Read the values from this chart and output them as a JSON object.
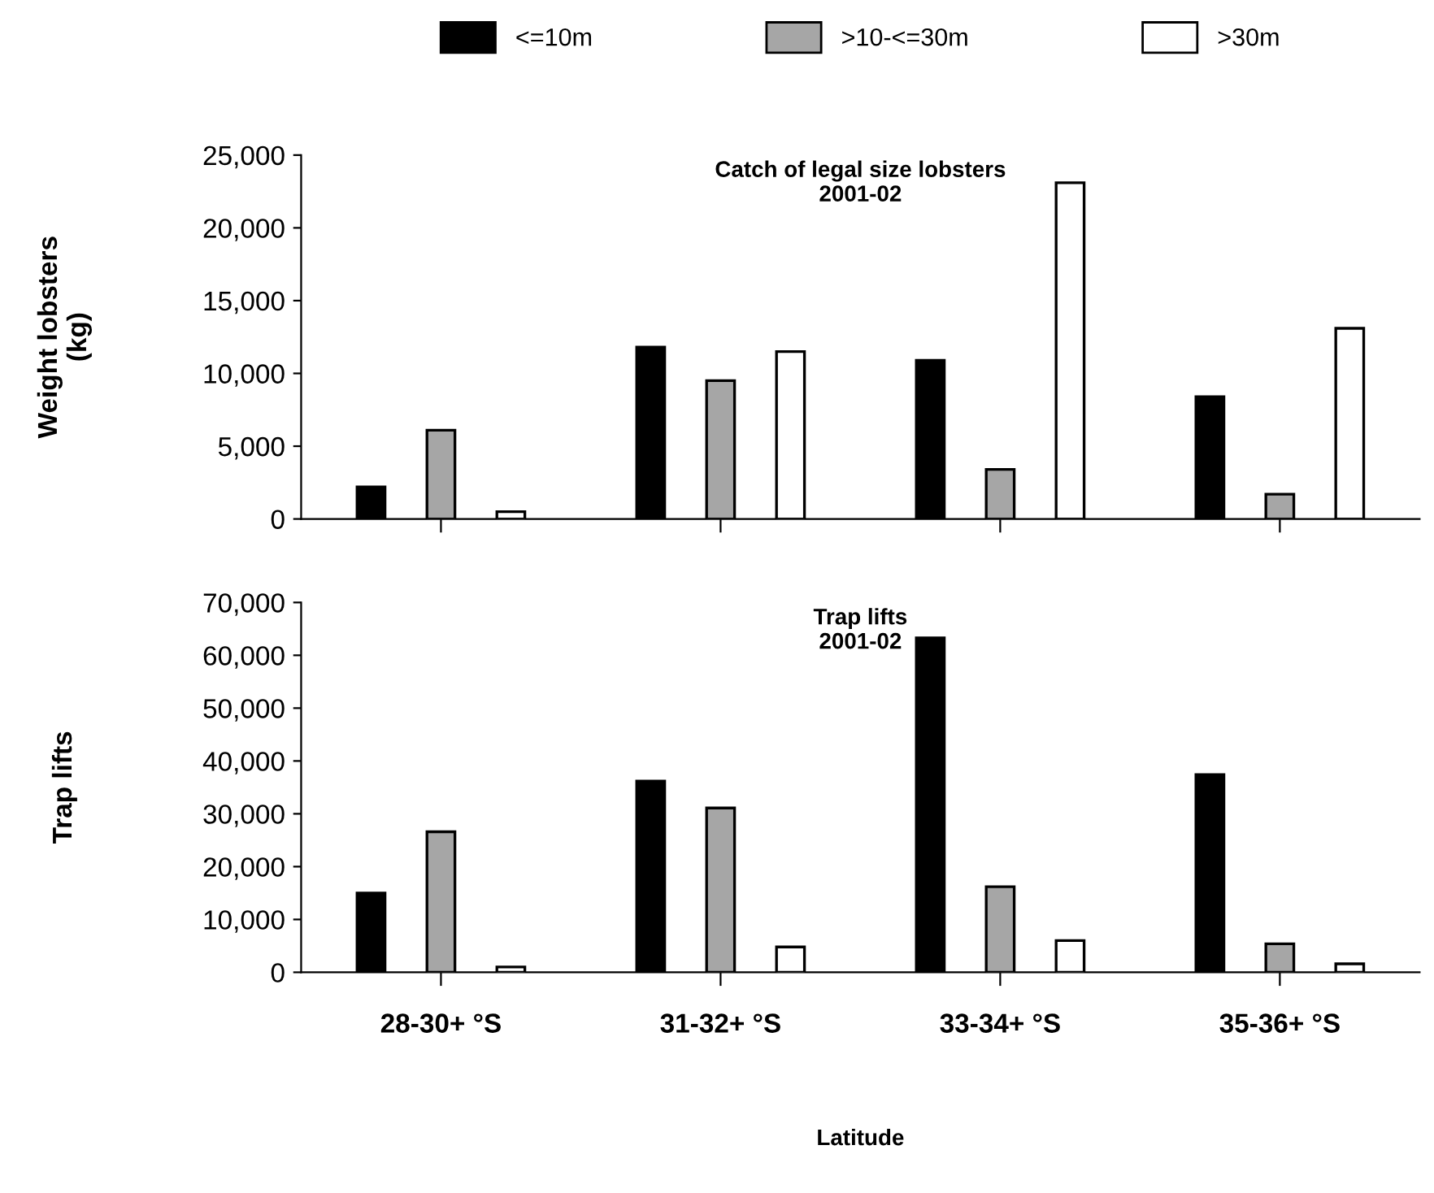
{
  "chart_data": [
    {
      "type": "bar",
      "title": "Catch of legal size lobsters\n2001-02",
      "ylabel": "Weight lobsters\n(kg)",
      "categories": [
        null,
        null,
        null,
        null
      ],
      "series": [
        {
          "name": "<=10m",
          "color": "#000000",
          "values": [
            2200,
            11800,
            10900,
            8400
          ]
        },
        {
          "name": ">10-<=30m",
          "color": "#a6a6a6",
          "values": [
            6100,
            9500,
            3400,
            1700
          ]
        },
        {
          "name": ">30m",
          "color": "#ffffff",
          "values": [
            500,
            11500,
            23100,
            13100
          ]
        }
      ],
      "ylim": [
        0,
        25000
      ],
      "yticks": [
        {
          "value": 0,
          "label": "0"
        },
        {
          "value": 5000,
          "label": "5,000"
        },
        {
          "value": 10000,
          "label": "10,000"
        },
        {
          "value": 15000,
          "label": "15,000"
        },
        {
          "value": 20000,
          "label": "20,000"
        },
        {
          "value": 25000,
          "label": "25,000"
        }
      ],
      "legend": "top"
    },
    {
      "type": "bar",
      "title": "Trap lifts\n2001-02",
      "ylabel": "Trap lifts",
      "xlabel": "Latitude",
      "categories": [
        "28-30+ °S",
        "31-32+ °S",
        "33-34+ °S",
        "35-36+ °S"
      ],
      "series": [
        {
          "color": "#000000",
          "values": [
            15000,
            36200,
            63300,
            37400
          ]
        },
        {
          "color": "#a6a6a6",
          "values": [
            26600,
            31100,
            16200,
            5400
          ]
        },
        {
          "color": "#ffffff",
          "values": [
            1000,
            4800,
            6000,
            1600
          ]
        }
      ],
      "ylim": [
        0,
        70000
      ],
      "yticks": [
        {
          "value": 0,
          "label": "0"
        },
        {
          "value": 10000,
          "label": "10,000"
        },
        {
          "value": 20000,
          "label": "20,000"
        },
        {
          "value": 30000,
          "label": "30,000"
        },
        {
          "value": 40000,
          "label": "40,000"
        },
        {
          "value": 50000,
          "label": "50,000"
        },
        {
          "value": 60000,
          "label": "60,000"
        },
        {
          "value": 70000,
          "label": "70,000"
        }
      ]
    }
  ]
}
